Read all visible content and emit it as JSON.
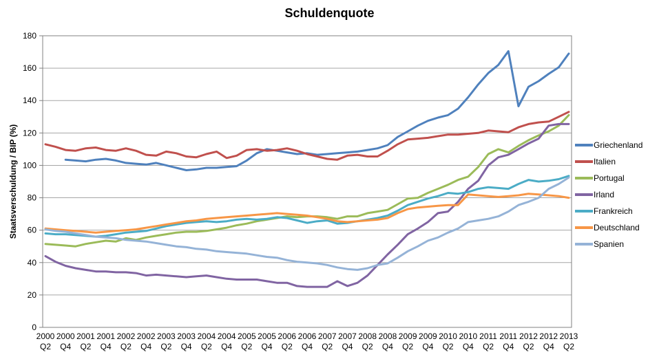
{
  "title": "Schuldenquote",
  "y_axis": {
    "label": "Staatsverschuldung / BIP (%)",
    "min": 0,
    "max": 180,
    "ticks": [
      0,
      20,
      40,
      60,
      80,
      100,
      120,
      140,
      160,
      180
    ]
  },
  "x_axis": {
    "tick_every": 2
  },
  "chart_data": {
    "type": "line",
    "title": "Schuldenquote",
    "xlabel": "",
    "ylabel": "Staatsverschuldung / BIP (%)",
    "ylim": [
      0,
      180
    ],
    "grid": true,
    "legend_position": "right",
    "x": [
      "2000 Q2",
      "2000 Q3",
      "2000 Q4",
      "2001 Q1",
      "2001 Q2",
      "2001 Q3",
      "2001 Q4",
      "2002 Q1",
      "2002 Q2",
      "2002 Q3",
      "2002 Q4",
      "2003 Q1",
      "2003 Q2",
      "2003 Q3",
      "2003 Q4",
      "2004 Q1",
      "2004 Q2",
      "2004 Q3",
      "2004 Q4",
      "2005 Q1",
      "2005 Q2",
      "2005 Q3",
      "2005 Q4",
      "2006 Q1",
      "2006 Q2",
      "2006 Q3",
      "2006 Q4",
      "2007 Q1",
      "2007 Q2",
      "2007 Q3",
      "2007 Q4",
      "2008 Q1",
      "2008 Q2",
      "2008 Q3",
      "2008 Q4",
      "2009 Q1",
      "2009 Q2",
      "2009 Q3",
      "2009 Q4",
      "2010 Q1",
      "2010 Q2",
      "2010 Q3",
      "2010 Q4",
      "2011 Q1",
      "2011 Q2",
      "2011 Q3",
      "2011 Q4",
      "2012 Q1",
      "2012 Q2",
      "2012 Q3",
      "2012 Q4",
      "2013 Q1",
      "2013 Q2"
    ],
    "series": [
      {
        "name": "Griechenland",
        "color": "#4F81BD",
        "values": [
          null,
          null,
          103.5,
          103,
          102.5,
          103.5,
          104,
          103,
          101.5,
          101,
          100.5,
          101.5,
          100,
          98.5,
          97,
          97.5,
          98.5,
          98.5,
          99,
          99.5,
          103,
          107.5,
          110,
          109,
          108,
          107,
          107.5,
          106.5,
          107,
          107.5,
          108,
          108.5,
          109.5,
          110.5,
          112.5,
          117.5,
          121,
          124.5,
          127.5,
          129.5,
          131,
          135,
          142,
          150,
          157,
          162,
          170.5,
          136.5,
          148.5,
          152,
          156.5,
          160.5,
          169
        ]
      },
      {
        "name": "Italien",
        "color": "#C0504D",
        "values": [
          113,
          111.5,
          109.5,
          109,
          110.5,
          111,
          109.5,
          109,
          110.5,
          109,
          106.5,
          106,
          108.5,
          107.5,
          105.5,
          105,
          107,
          108.5,
          104.5,
          106,
          109.5,
          110,
          109,
          109.5,
          110.5,
          109,
          107,
          105.5,
          104,
          103.5,
          106,
          106.5,
          105.5,
          105.5,
          109,
          113,
          116,
          116.5,
          117,
          118,
          119,
          119,
          119.5,
          120,
          121.5,
          121,
          120.5,
          123.5,
          125.5,
          126.5,
          127,
          130,
          133
        ]
      },
      {
        "name": "Portugal",
        "color": "#9BBB59",
        "values": [
          51.5,
          51,
          50.5,
          50,
          51.5,
          52.5,
          53.5,
          53,
          55,
          54,
          55.5,
          56.5,
          57.5,
          58.5,
          59,
          59,
          59.5,
          60.5,
          61.5,
          63,
          64,
          65.5,
          66.5,
          67.5,
          68.5,
          68,
          68.5,
          68.5,
          68,
          67,
          68.5,
          68.5,
          70.5,
          71.5,
          72.5,
          76,
          79.5,
          80,
          83,
          85.5,
          88,
          91,
          93,
          99,
          107,
          110,
          108,
          112,
          115.5,
          118.5,
          121,
          124.5,
          131
        ]
      },
      {
        "name": "Irland",
        "color": "#8064A2",
        "values": [
          44,
          40.5,
          38,
          36.5,
          35.5,
          34.5,
          34.5,
          34,
          34,
          33.5,
          32,
          32.5,
          32,
          31.5,
          31,
          31.5,
          32,
          31,
          30,
          29.5,
          29.5,
          29.5,
          28.5,
          27.5,
          27.5,
          25.5,
          25,
          25,
          25,
          28.5,
          25.5,
          27.5,
          32,
          38.5,
          45,
          51,
          57.5,
          61,
          65,
          70.5,
          71.5,
          77.5,
          85.5,
          90.5,
          100,
          105,
          106.5,
          110,
          113.5,
          116.5,
          124.5,
          125.5,
          125.5
        ]
      },
      {
        "name": "Frankreich",
        "color": "#4BACC6",
        "values": [
          58,
          57.5,
          57.5,
          57,
          56.5,
          56,
          56.5,
          57.5,
          58.5,
          59,
          59.5,
          61,
          62.5,
          63.5,
          64.5,
          65,
          65.5,
          65,
          65.5,
          66.5,
          67,
          66.5,
          67,
          68,
          67.5,
          66,
          64.5,
          65.5,
          66,
          64,
          64.5,
          65.5,
          66.5,
          67.5,
          69,
          72,
          75.5,
          77.5,
          79.5,
          81,
          83,
          82.5,
          83.5,
          85.5,
          86.5,
          86,
          85.5,
          88.5,
          91,
          90,
          90.5,
          91.5,
          93.5
        ]
      },
      {
        "name": "Deutschland",
        "color": "#F79646",
        "values": [
          61,
          60.5,
          60,
          59.5,
          59,
          58.5,
          59,
          59.5,
          60,
          60.5,
          61.5,
          62.5,
          63.5,
          64.5,
          65.5,
          66,
          67,
          67.5,
          68,
          68.5,
          69,
          69.5,
          70,
          70.5,
          70,
          69.5,
          69,
          68,
          67,
          65.5,
          65,
          65.5,
          66,
          66.5,
          67.5,
          70.5,
          73,
          74,
          74.5,
          75,
          75.5,
          75.5,
          82,
          81.5,
          81,
          80.5,
          81,
          81.5,
          82.5,
          82,
          81.5,
          81,
          80
        ]
      },
      {
        "name": "Spanien",
        "color": "#95B3D7",
        "values": [
          60.5,
          59.5,
          59,
          58,
          57,
          56,
          55.5,
          55,
          54,
          53.5,
          53,
          52,
          51,
          50,
          49.5,
          48.5,
          48,
          47,
          46.5,
          46,
          45.5,
          44.5,
          43.5,
          43,
          41.5,
          40.5,
          40,
          39.5,
          38.5,
          37,
          36,
          35.5,
          36.5,
          38.5,
          39.5,
          43,
          47,
          50,
          53.5,
          55.5,
          58.5,
          61,
          65,
          66,
          67,
          68.5,
          71.5,
          75.5,
          77.5,
          80,
          85.5,
          88.5,
          92.5
        ]
      }
    ]
  }
}
